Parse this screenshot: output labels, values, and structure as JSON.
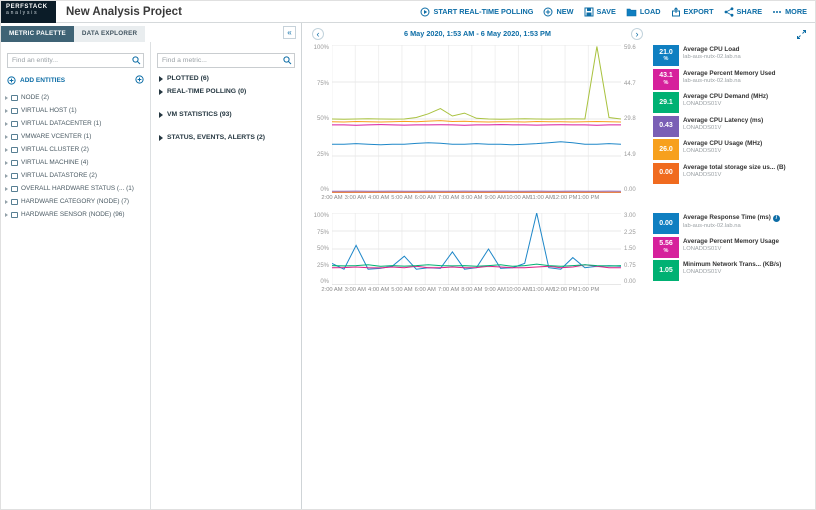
{
  "app": {
    "logo_top": "PERFSTACK",
    "logo_bottom": "analysis",
    "title": "New Analysis Project"
  },
  "icons": {
    "collapse": "«",
    "back": "‹",
    "forward": "›",
    "info": "i"
  },
  "toolbar": {
    "items": [
      {
        "label": "START REAL-TIME POLLING",
        "icon": "polling-icon"
      },
      {
        "label": "NEW",
        "icon": "new-icon"
      },
      {
        "label": "SAVE",
        "icon": "save-icon"
      },
      {
        "label": "LOAD",
        "icon": "load-icon"
      },
      {
        "label": "EXPORT",
        "icon": "export-icon"
      },
      {
        "label": "SHARE",
        "icon": "share-icon"
      },
      {
        "label": "MORE",
        "icon": "more-icon"
      }
    ]
  },
  "palette": {
    "tabs": [
      {
        "label": "METRIC PALETTE",
        "active": true
      },
      {
        "label": "DATA EXPLORER",
        "active": false
      }
    ],
    "entity_search_placeholder": "Find an entity...",
    "add_entities_label": "ADD ENTITIES",
    "entities": [
      {
        "label": "NODE (2)",
        "icon": "node-icon"
      },
      {
        "label": "VIRTUAL HOST (1)",
        "icon": "virtual-host-icon"
      },
      {
        "label": "VIRTUAL DATACENTER (1)",
        "icon": "virtual-datacenter-icon"
      },
      {
        "label": "VMWARE VCENTER (1)",
        "icon": "vmware-vcenter-icon"
      },
      {
        "label": "VIRTUAL CLUSTER (2)",
        "icon": "virtual-cluster-icon"
      },
      {
        "label": "VIRTUAL MACHINE (4)",
        "icon": "virtual-machine-icon"
      },
      {
        "label": "VIRTUAL DATASTORE (2)",
        "icon": "virtual-datastore-icon"
      },
      {
        "label": "OVERALL HARDWARE STATUS (... (1)",
        "icon": "hardware-status-icon"
      },
      {
        "label": "HARDWARE CATEGORY (NODE) (7)",
        "icon": "hardware-category-icon"
      },
      {
        "label": "HARDWARE SENSOR (NODE) (96)",
        "icon": "hardware-sensor-icon"
      }
    ],
    "metric_search_placeholder": "Find a metric...",
    "metric_groups": [
      {
        "label": "PLOTTED (6)"
      },
      {
        "label": "REAL-TIME POLLING (0)"
      },
      {
        "label": "VM STATISTICS (93)"
      },
      {
        "label": "STATUS, EVENTS, ALERTS (2)"
      }
    ]
  },
  "timebar": {
    "range_label": "6 May 2020, 1:53 AM - 6 May 2020, 1:53 PM"
  },
  "chart_data": [
    {
      "type": "line",
      "title": "",
      "x_ticks": [
        "2:00 AM",
        "3:00 AM",
        "4:00 AM",
        "5:00 AM",
        "6:00 AM",
        "7:00 AM",
        "8:00 AM",
        "9:00 AM",
        "10:00 AM",
        "11:00 AM",
        "12:00 PM",
        "1:00 PM"
      ],
      "y_left_labels": [
        "100%",
        "75%",
        "50%",
        "25%",
        "0%"
      ],
      "y_right_labels": [
        "59.6",
        "44.7",
        "29.8",
        "14.9",
        "0.00"
      ],
      "ylim": [
        0,
        100
      ],
      "grid": true,
      "legend_position": "right",
      "series": [
        {
          "name": "Average CPU Load",
          "color": "#1e87c8",
          "values": [
            33,
            33,
            33.4,
            33,
            32.6,
            33,
            33,
            33.5,
            34,
            33.6,
            33,
            33,
            33.4,
            33,
            33,
            32.6,
            33,
            33.4,
            34,
            34.6,
            34,
            33,
            33,
            33.4,
            33
          ]
        },
        {
          "name": "Average Percent Memory Used",
          "color": "#d81b9f",
          "values": [
            46,
            46,
            45.8,
            46,
            46.2,
            46,
            45.9,
            46,
            46,
            46.1,
            46,
            45.8,
            46,
            46,
            46.2,
            46,
            46,
            45.9,
            46,
            46.1,
            46,
            46,
            45.8,
            46,
            46
          ]
        },
        {
          "name": "Average CPU Demand (MHz)",
          "color": "#a9c23f",
          "values": [
            50,
            49.8,
            50,
            50.2,
            50,
            49.9,
            50,
            51,
            53.5,
            57,
            52,
            54,
            50.5,
            50,
            49.8,
            50,
            50.2,
            50,
            49.9,
            50,
            50.1,
            50,
            99,
            51,
            50
          ]
        },
        {
          "name": "Average CPU Latency (ms)",
          "color": "#8a6fc8",
          "values": [
            1.2,
            1.2,
            1.3,
            1.2,
            1.2,
            1.3,
            1.2,
            1.2,
            1.3,
            1.2,
            1.2,
            1.3,
            1.2,
            1.2,
            1.3,
            1.2,
            1.2,
            1.3,
            1.2,
            1.2,
            1.3,
            1.2,
            1.2,
            1.3,
            1.2
          ]
        },
        {
          "name": "Average CPU Usage (MHz)",
          "color": "#f7a01d",
          "values": [
            48.2,
            48,
            48.3,
            48.1,
            48,
            48.2,
            48.4,
            48.1,
            48.6,
            48.9,
            48.3,
            48.5,
            48.2,
            48,
            48.1,
            48.2,
            48,
            48.3,
            48.1,
            48.2,
            48,
            48.1,
            48.3,
            48.2,
            48
          ]
        },
        {
          "name": "Average total storage size used (B)",
          "color": "#f06b1f",
          "values": [
            0.5,
            0.5,
            0.5,
            0.5,
            0.5,
            0.5,
            0.5,
            0.5,
            0.5,
            0.5,
            0.5,
            0.5,
            0.5,
            0.5,
            0.5,
            0.5,
            0.5,
            0.5,
            0.5,
            0.5,
            0.5,
            0.5,
            0.5,
            0.5,
            0.5
          ]
        }
      ]
    },
    {
      "type": "line",
      "title": "",
      "x_ticks": [
        "2:00 AM",
        "3:00 AM",
        "4:00 AM",
        "5:00 AM",
        "6:00 AM",
        "7:00 AM",
        "8:00 AM",
        "9:00 AM",
        "10:00 AM",
        "11:00 AM",
        "12:00 PM",
        "1:00 PM"
      ],
      "y_left_labels": [
        "100%",
        "75%",
        "50%",
        "25%",
        "0%"
      ],
      "y_right_labels": [
        "3.00",
        "2.25",
        "1.50",
        "0.75",
        "0.00"
      ],
      "ylim": [
        0,
        100
      ],
      "grid": true,
      "legend_position": "right",
      "series": [
        {
          "name": "Average Response Time (ms)",
          "color": "#1e87c8",
          "values": [
            30,
            22,
            55,
            22,
            23,
            26,
            40,
            22,
            24,
            23,
            46,
            22,
            24,
            50,
            23,
            24,
            30,
            100,
            24,
            22,
            38,
            24,
            26,
            27,
            26
          ]
        },
        {
          "name": "Average Percent Memory Usage",
          "color": "#e0218a",
          "values": [
            24,
            24.2,
            25,
            24,
            23.8,
            25,
            24,
            26,
            24,
            23.9,
            25,
            24,
            24.2,
            26,
            25,
            24,
            24,
            25,
            26,
            24,
            25,
            28,
            26,
            24,
            24
          ]
        },
        {
          "name": "Minimum Network Transmit (KB/s)",
          "color": "#00b173",
          "values": [
            27,
            26.5,
            27,
            28,
            26,
            27,
            26.2,
            27,
            28,
            27,
            26.5,
            27,
            26,
            27,
            28,
            26,
            27,
            29,
            27,
            26,
            27,
            28,
            27,
            26.4,
            27
          ]
        }
      ]
    }
  ],
  "legend1": [
    {
      "value": "21.0",
      "unit": "%",
      "color": "#0f7fc1",
      "title": "Average CPU Load",
      "subtitle": "lab-aus-nutx-02.lab.na"
    },
    {
      "value": "43.1",
      "unit": "%",
      "color": "#d6219c",
      "title": "Average Percent Memory Used",
      "subtitle": "lab-aus-nutx-02.lab.na"
    },
    {
      "value": "29.1",
      "unit": "",
      "color": "#00b173",
      "title": "Average CPU Demand (MHz)",
      "subtitle": "LONADDS01V"
    },
    {
      "value": "0.43",
      "unit": "",
      "color": "#7a5fb5",
      "title": "Average CPU Latency (ms)",
      "subtitle": "LONADDS01V"
    },
    {
      "value": "26.0",
      "unit": "",
      "color": "#f7a01d",
      "title": "Average CPU Usage (MHz)",
      "subtitle": "LONADDS01V"
    },
    {
      "value": "0.00",
      "unit": "",
      "color": "#f06b1f",
      "title": "Average total storage size us...  (B)",
      "subtitle": "LONADDS01V"
    }
  ],
  "legend2": [
    {
      "value": "0.00",
      "unit": "",
      "color": "#0f7fc1",
      "title": "Average Response Time (ms)",
      "subtitle": "lab-aus-nutx-02.lab.na"
    },
    {
      "value": "5.56",
      "unit": "%",
      "color": "#d6219c",
      "title": "Average Percent Memory Usage",
      "subtitle": "LONADDS01V"
    },
    {
      "value": "1.05",
      "unit": "",
      "color": "#00b173",
      "title": "Minimum Network Trans...  (KB/s)",
      "subtitle": "LONADDS01V"
    }
  ]
}
